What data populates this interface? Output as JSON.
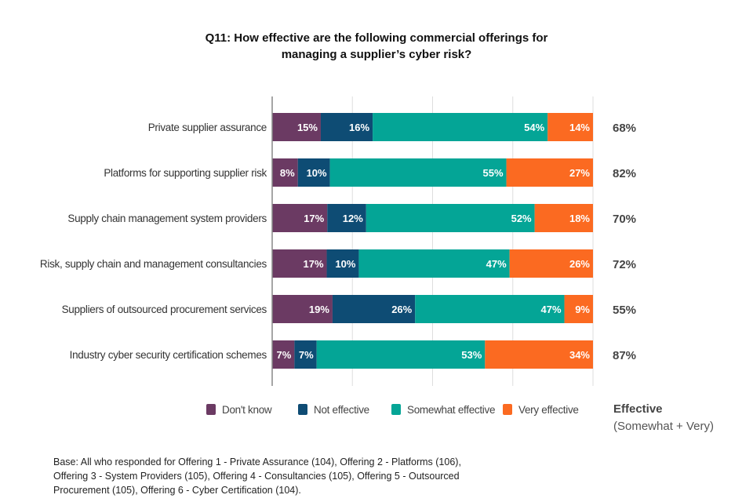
{
  "title_lines": [
    "Q11: How effective are the following commercial offerings for",
    "managing a supplier’s cyber risk?"
  ],
  "chart_data": {
    "type": "bar",
    "orientation": "horizontal",
    "stacked": true,
    "title": "Q11: How effective are the following commercial offerings for managing a supplier’s cyber risk?",
    "xlim": [
      0,
      100
    ],
    "grid": true,
    "legend_position": "bottom",
    "categories": [
      "Private supplier assurance",
      "Platforms for supporting supplier risk",
      "Supply chain management system providers",
      "Risk, supply chain and management consultancies",
      "Suppliers of outsourced procurement services",
      "Industry cyber security certification schemes"
    ],
    "series": [
      {
        "name": "Don't know",
        "color": "#6b3a63",
        "values": [
          15,
          8,
          17,
          17,
          19,
          7
        ]
      },
      {
        "name": "Not effective",
        "color": "#0e4c74",
        "values": [
          16,
          10,
          12,
          10,
          26,
          7
        ]
      },
      {
        "name": "Somewhat effective",
        "color": "#04a596",
        "values": [
          54,
          55,
          52,
          47,
          47,
          53
        ]
      },
      {
        "name": "Very effective",
        "color": "#fb6a21",
        "values": [
          14,
          27,
          18,
          26,
          9,
          34
        ]
      }
    ],
    "effective_totals": [
      "68%",
      "82%",
      "70%",
      "72%",
      "55%",
      "87%"
    ],
    "effective_legend": {
      "title": "Effective",
      "subtitle": "(Somewhat + Very)"
    }
  },
  "base_note": [
    "Base: All who responded for Offering 1 - Private Assurance (104), Offering 2 - Platforms (106),",
    "Offering 3 - System Providers (105), Offering 4 - Consultancies (105), Offering 5 - Outsourced",
    "Procurement (105), Offering 6 - Cyber Certification (104)."
  ]
}
